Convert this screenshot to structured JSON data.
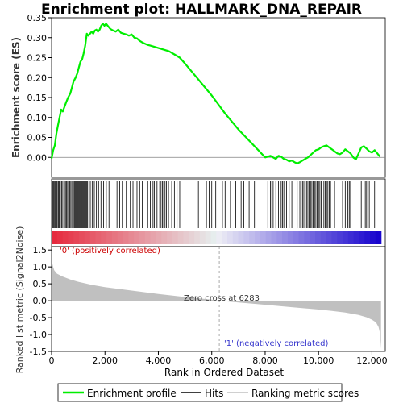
{
  "chart_data": {
    "type": "line",
    "title": "Enrichment plot: HALLMARK_DNA_REPAIR",
    "es_panel": {
      "ylabel": "Enrichment score (ES)",
      "ylim": [
        -0.05,
        0.35
      ],
      "yticks": [
        "0.00",
        "0.05",
        "0.10",
        "0.15",
        "0.20",
        "0.25",
        "0.30",
        "0.35"
      ],
      "ytick_values": [
        0,
        0.05,
        0.1,
        0.15,
        0.2,
        0.25,
        0.3,
        0.35
      ],
      "series": {
        "name": "Enrichment profile",
        "color": "#00ee00",
        "x": [
          0,
          60,
          120,
          180,
          240,
          300,
          360,
          420,
          500,
          560,
          620,
          700,
          760,
          820,
          900,
          960,
          1020,
          1080,
          1140,
          1200,
          1260,
          1320,
          1380,
          1440,
          1500,
          1560,
          1620,
          1680,
          1740,
          1800,
          1860,
          1920,
          1980,
          2040,
          2100,
          2200,
          2300,
          2400,
          2500,
          2600,
          2700,
          2800,
          2900,
          3000,
          3100,
          3200,
          3300,
          3400,
          3500,
          3600,
          3700,
          3800,
          3900,
          4000,
          4100,
          4200,
          4300,
          4400,
          4500,
          4600,
          4700,
          4800,
          5000,
          5500,
          6000,
          6500,
          7000,
          7500,
          8000,
          8100,
          8200,
          8300,
          8400,
          8500,
          8600,
          8700,
          8800,
          8900,
          9000,
          9100,
          9200,
          9300,
          9400,
          9500,
          9600,
          9700,
          9800,
          9900,
          10000,
          10100,
          10200,
          10300,
          10400,
          10500,
          10600,
          10700,
          10800,
          10900,
          11000,
          11100,
          11200,
          11300,
          11400,
          11500,
          11600,
          11700,
          11800,
          11900,
          12000,
          12100,
          12200,
          12300
        ],
        "y": [
          -0.003,
          0.018,
          0.03,
          0.06,
          0.08,
          0.1,
          0.12,
          0.115,
          0.13,
          0.14,
          0.15,
          0.16,
          0.175,
          0.19,
          0.2,
          0.21,
          0.225,
          0.24,
          0.245,
          0.26,
          0.28,
          0.31,
          0.305,
          0.31,
          0.315,
          0.31,
          0.318,
          0.32,
          0.315,
          0.32,
          0.33,
          0.335,
          0.33,
          0.335,
          0.33,
          0.322,
          0.318,
          0.315,
          0.32,
          0.312,
          0.31,
          0.308,
          0.305,
          0.308,
          0.3,
          0.298,
          0.292,
          0.288,
          0.285,
          0.282,
          0.28,
          0.278,
          0.276,
          0.274,
          0.272,
          0.27,
          0.268,
          0.266,
          0.262,
          0.258,
          0.254,
          0.25,
          0.235,
          0.195,
          0.155,
          0.11,
          0.07,
          0.035,
          0.0,
          0.002,
          0.004,
          0.0,
          -0.004,
          0.004,
          0.002,
          -0.004,
          -0.006,
          -0.01,
          -0.008,
          -0.012,
          -0.015,
          -0.012,
          -0.008,
          -0.004,
          0.0,
          0.006,
          0.012,
          0.018,
          0.02,
          0.025,
          0.028,
          0.03,
          0.025,
          0.02,
          0.015,
          0.01,
          0.008,
          0.012,
          0.02,
          0.015,
          0.01,
          0.0,
          -0.005,
          0.01,
          0.025,
          0.028,
          0.022,
          0.015,
          0.012,
          0.018,
          0.01,
          0.002
        ]
      }
    },
    "ranking_panel": {
      "ylabel": "Ranked list metric (Signal2Noise)",
      "ylim": [
        -1.5,
        1.6
      ],
      "yticks": [
        "-1.5",
        "-1.0",
        "-0.5",
        "0.0",
        "0.5",
        "1.0",
        "1.5"
      ],
      "ytick_values": [
        -1.5,
        -1.0,
        -0.5,
        0.0,
        0.5,
        1.0,
        1.5
      ],
      "curve_x": [
        0,
        50,
        100,
        200,
        400,
        700,
        1000,
        1500,
        2000,
        3000,
        4000,
        5000,
        6000,
        6283,
        7000,
        8000,
        9000,
        10000,
        10500,
        11000,
        11500,
        11800,
        12000,
        12150,
        12250,
        12300,
        12340
      ],
      "curve_y": [
        1.2,
        1.02,
        0.9,
        0.8,
        0.72,
        0.63,
        0.56,
        0.47,
        0.4,
        0.3,
        0.2,
        0.11,
        0.03,
        0.0,
        -0.05,
        -0.12,
        -0.19,
        -0.26,
        -0.3,
        -0.35,
        -0.42,
        -0.49,
        -0.56,
        -0.64,
        -0.78,
        -0.96,
        -1.42
      ],
      "zero_cross_label": "Zero cross at 6283",
      "zero_cross_x": 6283,
      "pos_label": "'0' (positively correlated)",
      "neg_label": "'1' (negatively correlated)"
    },
    "xlabel": "Rank in Ordered Dataset",
    "xlim": [
      0,
      12500
    ],
    "xticks": [
      "0",
      "2,000",
      "4,000",
      "6,000",
      "8,000",
      "10,000",
      "12,000"
    ],
    "xtick_values": [
      0,
      2000,
      4000,
      6000,
      8000,
      10000,
      12000
    ],
    "hits": [
      40,
      70,
      100,
      140,
      170,
      200,
      240,
      270,
      300,
      330,
      380,
      420,
      480,
      520,
      560,
      600,
      640,
      680,
      720,
      760,
      800,
      840,
      870,
      900,
      930,
      960,
      990,
      1020,
      1050,
      1080,
      1110,
      1140,
      1170,
      1200,
      1230,
      1260,
      1290,
      1320,
      1350,
      1400,
      1450,
      1520,
      1600,
      1680,
      1760,
      1850,
      1950,
      2050,
      2150,
      2450,
      2550,
      2650,
      2800,
      2950,
      3050,
      3200,
      3300,
      3400,
      3600,
      3700,
      3800,
      3850,
      3950,
      4050,
      4100,
      4150,
      4200,
      4250,
      4300,
      4380,
      4500,
      4600,
      4700,
      4800,
      5500,
      5800,
      5900,
      6000,
      6150,
      6400,
      6500,
      6700,
      6900,
      7100,
      7200,
      7400,
      7600,
      8100,
      8200,
      8250,
      8300,
      8400,
      8500,
      8600,
      8650,
      8700,
      8800,
      8900,
      9000,
      9200,
      9300,
      9350,
      9400,
      9450,
      9500,
      9550,
      9600,
      9650,
      9700,
      9750,
      9800,
      9850,
      9900,
      9950,
      10000,
      10050,
      10100,
      10200,
      10250,
      10300,
      10350,
      10400,
      10450,
      10600,
      10900,
      11000,
      11100,
      11150,
      11200,
      11600,
      11700,
      11750,
      11800,
      11900,
      12100
    ],
    "legend": [
      {
        "label": "Enrichment profile",
        "color": "#00ee00"
      },
      {
        "label": "Hits",
        "color": "#000000"
      },
      {
        "label": "Ranking metric scores",
        "color": "#c0c0c0"
      }
    ]
  }
}
